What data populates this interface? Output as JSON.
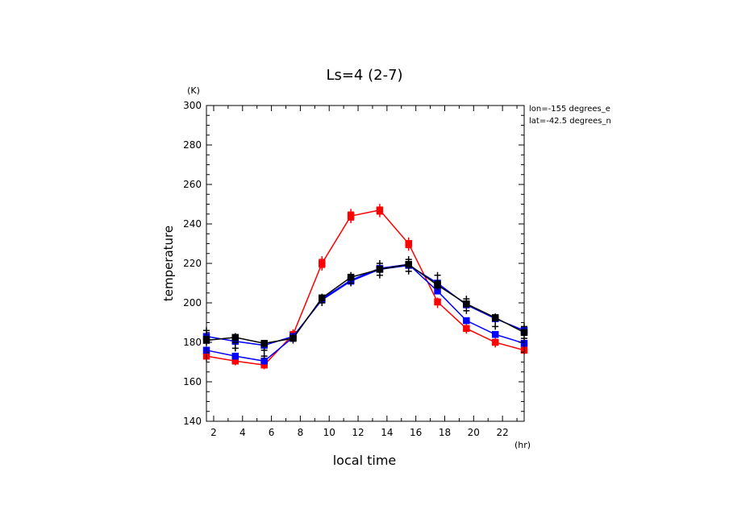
{
  "chart_data": {
    "type": "line",
    "title": "Ls=4 (2-7)",
    "xlabel": "local time",
    "ylabel": "temperature",
    "x_unit": "(hr)",
    "y_unit": "(K)",
    "xlim": [
      1.5,
      23.5
    ],
    "ylim": [
      140,
      300
    ],
    "xticks": [
      2,
      4,
      6,
      8,
      10,
      12,
      14,
      16,
      18,
      20,
      22
    ],
    "yticks": [
      140,
      160,
      180,
      200,
      220,
      240,
      260,
      280,
      300
    ],
    "x": [
      1.5,
      3.5,
      5.5,
      7.5,
      9.5,
      11.5,
      13.5,
      15.5,
      17.5,
      19.5,
      21.5,
      23.5
    ],
    "grid": false,
    "annotations": [
      "lon=-155 degrees_e",
      "lat=-42.5 degrees_n"
    ],
    "series": [
      {
        "color": "#ff0000",
        "marker": "square",
        "values": [
          173,
          170.5,
          168.5,
          184,
          220,
          244,
          247,
          230,
          200.5,
          187,
          180,
          176
        ],
        "cross_points": [
          [
            1.5,
            172
          ],
          [
            1.5,
            174
          ],
          [
            3.5,
            170
          ],
          [
            3.5,
            171.5
          ],
          [
            5.5,
            168
          ],
          [
            5.5,
            169.5
          ],
          [
            7.5,
            183
          ],
          [
            7.5,
            185
          ],
          [
            9.5,
            218
          ],
          [
            9.5,
            222
          ],
          [
            11.5,
            242
          ],
          [
            11.5,
            246
          ],
          [
            13.5,
            245
          ],
          [
            13.5,
            248.5
          ],
          [
            15.5,
            228
          ],
          [
            15.5,
            231.5
          ],
          [
            17.5,
            199
          ],
          [
            17.5,
            201
          ],
          [
            19.5,
            186
          ],
          [
            19.5,
            188
          ],
          [
            21.5,
            179
          ],
          [
            21.5,
            181
          ],
          [
            23.5,
            175.5
          ],
          [
            23.5,
            177
          ]
        ]
      },
      {
        "color": "#0000ff",
        "marker": "square",
        "values": [
          183,
          180.5,
          178.5,
          183,
          201.5,
          211,
          217,
          219,
          210,
          199,
          192,
          186
        ],
        "cross_points": []
      },
      {
        "color": "#0000ff",
        "marker": "square",
        "values": [
          176,
          173,
          170.5,
          182.5,
          202,
          211.5,
          217.5,
          219.5,
          206,
          191,
          184,
          179.5
        ],
        "cross_points": []
      },
      {
        "color": "#000000",
        "marker": "square",
        "values": [
          181,
          182.5,
          179.5,
          182,
          202.5,
          213,
          217,
          219.5,
          209,
          199.5,
          192.5,
          185
        ],
        "cross_points": [
          [
            1.5,
            180
          ],
          [
            1.5,
            183
          ],
          [
            1.5,
            186
          ],
          [
            3.5,
            177
          ],
          [
            3.5,
            180
          ],
          [
            3.5,
            183
          ],
          [
            5.5,
            173
          ],
          [
            5.5,
            176
          ],
          [
            5.5,
            179
          ],
          [
            7.5,
            181
          ],
          [
            7.5,
            183
          ],
          [
            9.5,
            200
          ],
          [
            9.5,
            203
          ],
          [
            11.5,
            210
          ],
          [
            11.5,
            212
          ],
          [
            11.5,
            214
          ],
          [
            13.5,
            214
          ],
          [
            13.5,
            217
          ],
          [
            13.5,
            220
          ],
          [
            15.5,
            216
          ],
          [
            15.5,
            219
          ],
          [
            15.5,
            222
          ],
          [
            17.5,
            208
          ],
          [
            17.5,
            211
          ],
          [
            17.5,
            214
          ],
          [
            19.5,
            196
          ],
          [
            19.5,
            199
          ],
          [
            19.5,
            202
          ],
          [
            21.5,
            188
          ],
          [
            21.5,
            191
          ],
          [
            21.5,
            193
          ],
          [
            23.5,
            182
          ],
          [
            23.5,
            185
          ],
          [
            23.5,
            188
          ]
        ]
      }
    ]
  }
}
